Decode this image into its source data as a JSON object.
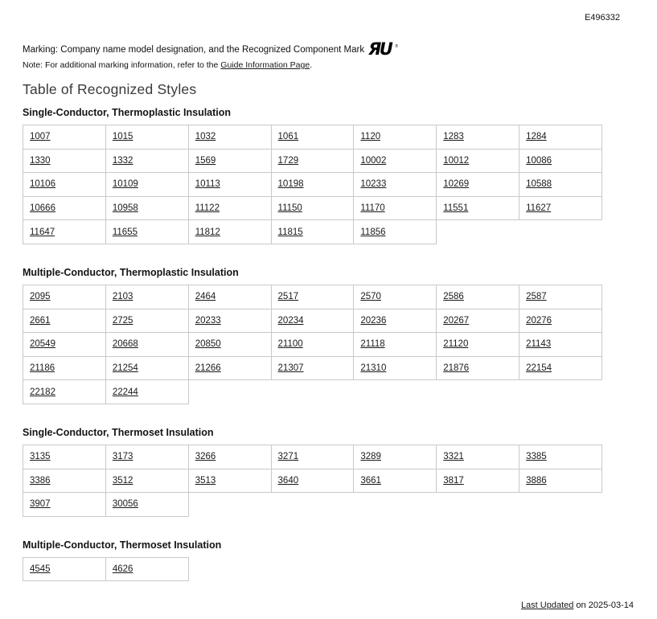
{
  "header": {
    "file_number": "E496332"
  },
  "marking": {
    "line": "Marking: Company name model designation, and the Recognized Component Mark",
    "mark_icon": "ul-recognized-component-mark-icon",
    "mark_glyph": "ЯU",
    "mark_reg": "®",
    "note_prefix": "Note: For additional marking information, refer to the ",
    "note_link": "Guide Information Page",
    "note_suffix": "."
  },
  "title": "Table of Recognized Styles",
  "sections": [
    {
      "heading": "Single-Conductor, Thermoplastic Insulation",
      "columns": 7,
      "rows": [
        [
          "1007",
          "1015",
          "1032",
          "1061",
          "1120",
          "1283",
          "1284"
        ],
        [
          "1330",
          "1332",
          "1569",
          "1729",
          "10002",
          "10012",
          "10086"
        ],
        [
          "10106",
          "10109",
          "10113",
          "10198",
          "10233",
          "10269",
          "10588"
        ],
        [
          "10666",
          "10958",
          "11122",
          "11150",
          "11170",
          "11551",
          "11627"
        ],
        [
          "11647",
          "11655",
          "11812",
          "11815",
          "11856"
        ]
      ]
    },
    {
      "heading": "Multiple-Conductor, Thermoplastic Insulation",
      "columns": 7,
      "rows": [
        [
          "2095",
          "2103",
          "2464",
          "2517",
          "2570",
          "2586",
          "2587"
        ],
        [
          "2661",
          "2725",
          "20233",
          "20234",
          "20236",
          "20267",
          "20276"
        ],
        [
          "20549",
          "20668",
          "20850",
          "21100",
          "21118",
          "21120",
          "21143"
        ],
        [
          "21186",
          "21254",
          "21266",
          "21307",
          "21310",
          "21876",
          "22154"
        ],
        [
          "22182",
          "22244"
        ]
      ]
    },
    {
      "heading": "Single-Conductor, Thermoset Insulation",
      "columns": 7,
      "rows": [
        [
          "3135",
          "3173",
          "3266",
          "3271",
          "3289",
          "3321",
          "3385"
        ],
        [
          "3386",
          "3512",
          "3513",
          "3640",
          "3661",
          "3817",
          "3886"
        ],
        [
          "3907",
          "30056"
        ]
      ]
    },
    {
      "heading": "Multiple-Conductor, Thermoset Insulation",
      "columns": 7,
      "rows": [
        [
          "4545",
          "4626"
        ]
      ]
    }
  ],
  "footer": {
    "link_label": "Last Updated",
    "suffix": " on 2025-03-14"
  },
  "colors": {
    "link": "#1a1a1a",
    "table_border": "#c9c9c9",
    "heading_text": "#141414",
    "title_text": "#3a3a3a",
    "background": "#ffffff"
  }
}
